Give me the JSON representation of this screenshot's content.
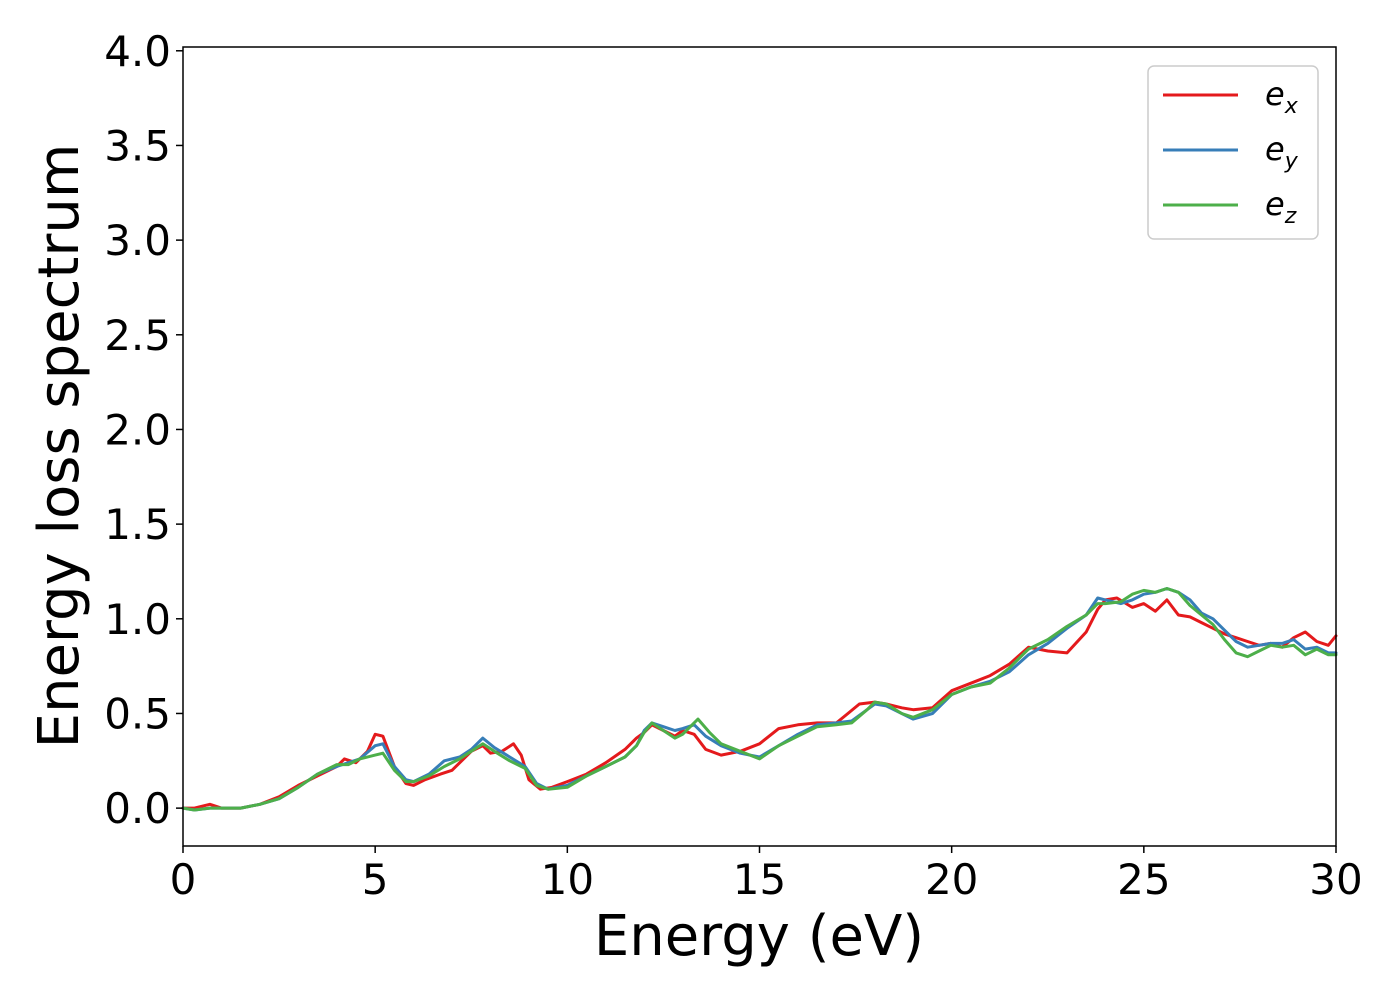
{
  "chart_data": {
    "type": "line",
    "title": "",
    "xlabel": "Energy (eV)",
    "ylabel": "Energy loss spectrum",
    "xlim": [
      0,
      30
    ],
    "ylim": [
      -0.2,
      4.02
    ],
    "xticks": [
      0,
      5,
      10,
      15,
      20,
      25,
      30
    ],
    "xtick_labels": [
      "0",
      "5",
      "10",
      "15",
      "20",
      "25",
      "30"
    ],
    "yticks": [
      0.0,
      0.5,
      1.0,
      1.5,
      2.0,
      2.5,
      3.0,
      3.5,
      4.0
    ],
    "ytick_labels": [
      "0.0",
      "0.5",
      "1.0",
      "1.5",
      "2.0",
      "2.5",
      "3.0",
      "3.5",
      "4.0"
    ],
    "grid": false,
    "legend_position": "top-right",
    "series": [
      {
        "name": "e_x",
        "label_base": "e",
        "label_sub": "x",
        "color": "#e41a1c",
        "x": [
          0,
          0.3,
          0.7,
          1.0,
          1.5,
          2.0,
          2.5,
          3.0,
          3.5,
          4.0,
          4.2,
          4.5,
          4.8,
          5.0,
          5.2,
          5.5,
          5.8,
          6.0,
          6.3,
          6.7,
          7.0,
          7.5,
          7.8,
          8.0,
          8.3,
          8.6,
          8.8,
          9.0,
          9.3,
          9.6,
          10.0,
          10.5,
          11.0,
          11.5,
          11.8,
          12.0,
          12.2,
          12.5,
          12.8,
          13.0,
          13.3,
          13.6,
          14.0,
          14.5,
          15.0,
          15.5,
          16.0,
          16.5,
          17.0,
          17.3,
          17.6,
          18.0,
          18.3,
          18.7,
          19.0,
          19.5,
          20.0,
          20.5,
          21.0,
          21.5,
          22.0,
          22.5,
          23.0,
          23.5,
          23.8,
          24.0,
          24.3,
          24.7,
          25.0,
          25.3,
          25.6,
          25.9,
          26.2,
          26.5,
          26.8,
          27.1,
          27.4,
          27.7,
          28.0,
          28.3,
          28.6,
          28.9,
          29.2,
          29.5,
          29.8,
          30.0
        ],
        "y": [
          0.0,
          0.0,
          0.02,
          0.0,
          0.0,
          0.02,
          0.06,
          0.12,
          0.17,
          0.22,
          0.26,
          0.24,
          0.3,
          0.39,
          0.38,
          0.22,
          0.13,
          0.12,
          0.15,
          0.18,
          0.2,
          0.3,
          0.33,
          0.29,
          0.3,
          0.34,
          0.28,
          0.15,
          0.1,
          0.11,
          0.14,
          0.18,
          0.24,
          0.31,
          0.37,
          0.4,
          0.44,
          0.41,
          0.38,
          0.41,
          0.39,
          0.31,
          0.28,
          0.3,
          0.34,
          0.42,
          0.44,
          0.45,
          0.45,
          0.5,
          0.55,
          0.56,
          0.55,
          0.53,
          0.52,
          0.53,
          0.62,
          0.66,
          0.7,
          0.76,
          0.85,
          0.83,
          0.82,
          0.93,
          1.05,
          1.1,
          1.11,
          1.06,
          1.08,
          1.04,
          1.1,
          1.02,
          1.01,
          0.98,
          0.95,
          0.92,
          0.9,
          0.88,
          0.86,
          0.87,
          0.85,
          0.9,
          0.93,
          0.88,
          0.86,
          0.91
        ]
      },
      {
        "name": "e_y",
        "label_base": "e",
        "label_sub": "y",
        "color": "#377eb8",
        "x": [
          0,
          0.3,
          0.7,
          1.0,
          1.5,
          2.0,
          2.5,
          3.0,
          3.5,
          4.0,
          4.3,
          4.6,
          5.0,
          5.2,
          5.5,
          5.8,
          6.0,
          6.4,
          6.8,
          7.2,
          7.5,
          7.8,
          8.1,
          8.5,
          8.9,
          9.2,
          9.5,
          10.0,
          10.5,
          11.0,
          11.5,
          11.8,
          12.0,
          12.2,
          12.5,
          12.8,
          13.0,
          13.3,
          13.6,
          14.0,
          14.5,
          15.0,
          15.5,
          16.0,
          16.5,
          17.0,
          17.4,
          17.8,
          18.0,
          18.3,
          18.7,
          19.0,
          19.5,
          20.0,
          20.5,
          21.0,
          21.5,
          22.0,
          22.5,
          23.0,
          23.5,
          23.8,
          24.0,
          24.4,
          24.7,
          25.0,
          25.3,
          25.6,
          25.9,
          26.2,
          26.5,
          26.8,
          27.1,
          27.4,
          27.7,
          28.0,
          28.3,
          28.6,
          28.9,
          29.2,
          29.5,
          29.8,
          30.0
        ],
        "y": [
          0.0,
          -0.01,
          0.0,
          0.0,
          0.0,
          0.02,
          0.05,
          0.11,
          0.18,
          0.22,
          0.24,
          0.26,
          0.33,
          0.34,
          0.22,
          0.15,
          0.14,
          0.18,
          0.25,
          0.27,
          0.31,
          0.37,
          0.32,
          0.27,
          0.22,
          0.13,
          0.1,
          0.12,
          0.17,
          0.22,
          0.27,
          0.33,
          0.41,
          0.45,
          0.43,
          0.41,
          0.42,
          0.44,
          0.38,
          0.33,
          0.29,
          0.27,
          0.33,
          0.39,
          0.44,
          0.45,
          0.46,
          0.52,
          0.55,
          0.54,
          0.5,
          0.47,
          0.5,
          0.6,
          0.64,
          0.67,
          0.72,
          0.81,
          0.87,
          0.95,
          1.02,
          1.11,
          1.1,
          1.08,
          1.1,
          1.13,
          1.14,
          1.16,
          1.14,
          1.1,
          1.03,
          1.0,
          0.94,
          0.88,
          0.85,
          0.86,
          0.87,
          0.87,
          0.89,
          0.84,
          0.85,
          0.82,
          0.82
        ]
      },
      {
        "name": "e_z",
        "label_base": "e",
        "label_sub": "z",
        "color": "#4daf4a",
        "x": [
          0,
          0.3,
          0.7,
          1.0,
          1.5,
          2.0,
          2.5,
          3.0,
          3.5,
          4.0,
          4.3,
          4.6,
          5.0,
          5.2,
          5.5,
          5.8,
          6.0,
          6.4,
          6.8,
          7.2,
          7.5,
          7.8,
          8.1,
          8.5,
          8.9,
          9.2,
          9.5,
          10.0,
          10.5,
          11.0,
          11.5,
          11.8,
          12.0,
          12.2,
          12.5,
          12.8,
          13.0,
          13.4,
          13.7,
          14.0,
          14.5,
          15.0,
          15.5,
          16.0,
          16.5,
          17.0,
          17.4,
          17.8,
          18.0,
          18.3,
          18.7,
          19.0,
          19.5,
          20.0,
          20.5,
          21.0,
          21.5,
          22.0,
          22.5,
          23.0,
          23.5,
          23.8,
          24.0,
          24.4,
          24.7,
          25.0,
          25.3,
          25.6,
          25.9,
          26.2,
          26.5,
          26.8,
          27.1,
          27.4,
          27.7,
          28.0,
          28.3,
          28.6,
          28.9,
          29.2,
          29.5,
          29.8,
          30.0
        ],
        "y": [
          0.0,
          -0.01,
          0.0,
          0.0,
          0.0,
          0.02,
          0.05,
          0.11,
          0.18,
          0.23,
          0.23,
          0.26,
          0.28,
          0.29,
          0.2,
          0.14,
          0.14,
          0.17,
          0.22,
          0.26,
          0.3,
          0.34,
          0.3,
          0.25,
          0.21,
          0.12,
          0.1,
          0.11,
          0.17,
          0.22,
          0.27,
          0.33,
          0.4,
          0.45,
          0.41,
          0.37,
          0.39,
          0.47,
          0.4,
          0.34,
          0.3,
          0.26,
          0.33,
          0.38,
          0.43,
          0.44,
          0.45,
          0.52,
          0.56,
          0.55,
          0.5,
          0.48,
          0.52,
          0.6,
          0.64,
          0.66,
          0.74,
          0.84,
          0.89,
          0.96,
          1.02,
          1.08,
          1.08,
          1.09,
          1.13,
          1.15,
          1.14,
          1.16,
          1.14,
          1.07,
          1.02,
          0.97,
          0.89,
          0.82,
          0.8,
          0.83,
          0.86,
          0.85,
          0.86,
          0.81,
          0.84,
          0.81,
          0.81
        ]
      }
    ]
  }
}
